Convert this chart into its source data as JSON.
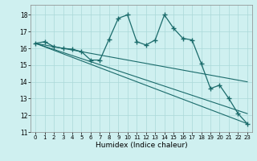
{
  "xlabel": "Humidex (Indice chaleur)",
  "background_color": "#cff0f0",
  "grid_color": "#aad8d8",
  "line_color": "#1a6b6b",
  "xlim": [
    -0.5,
    23.5
  ],
  "ylim": [
    11,
    18.6
  ],
  "yticks": [
    11,
    12,
    13,
    14,
    15,
    16,
    17,
    18
  ],
  "xticks": [
    0,
    1,
    2,
    3,
    4,
    5,
    6,
    7,
    8,
    9,
    10,
    11,
    12,
    13,
    14,
    15,
    16,
    17,
    18,
    19,
    20,
    21,
    22,
    23
  ],
  "main_series": {
    "x": [
      0,
      1,
      2,
      3,
      4,
      5,
      6,
      7,
      8,
      9,
      10,
      11,
      12,
      13,
      14,
      15,
      16,
      17,
      18,
      19,
      20,
      21,
      22,
      23
    ],
    "y": [
      16.3,
      16.4,
      16.1,
      16.0,
      15.95,
      15.8,
      15.3,
      15.3,
      16.55,
      17.8,
      18.0,
      16.4,
      16.2,
      16.5,
      18.0,
      17.2,
      16.6,
      16.5,
      15.1,
      13.6,
      13.8,
      13.0,
      12.1,
      11.5
    ]
  },
  "straight_lines": [
    {
      "x": [
        0,
        23
      ],
      "y": [
        16.3,
        11.5
      ]
    },
    {
      "x": [
        0,
        23
      ],
      "y": [
        16.3,
        12.1
      ]
    },
    {
      "x": [
        0,
        23
      ],
      "y": [
        16.3,
        14.0
      ]
    }
  ]
}
